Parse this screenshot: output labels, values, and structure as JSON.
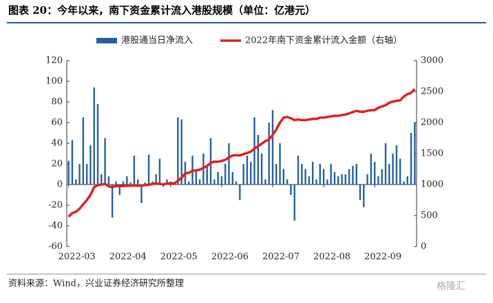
{
  "header": {
    "title": "图表 20：今年以来，南下资金累计流入港股规模（单位：亿港元）"
  },
  "chart_data": {
    "type": "bar-line",
    "categories": [
      "2022-03",
      null,
      null,
      null,
      null,
      null,
      null,
      null,
      null,
      null,
      null,
      null,
      null,
      null,
      "2022-04",
      null,
      null,
      null,
      null,
      null,
      null,
      null,
      null,
      null,
      null,
      null,
      null,
      null,
      "2022-05",
      null,
      null,
      null,
      null,
      null,
      null,
      null,
      null,
      null,
      null,
      null,
      null,
      null,
      "2022-06",
      null,
      null,
      null,
      null,
      null,
      null,
      null,
      null,
      null,
      null,
      null,
      null,
      null,
      "2022-07",
      null,
      null,
      null,
      null,
      null,
      null,
      null,
      null,
      null,
      null,
      null,
      null,
      null,
      "2022-08",
      null,
      null,
      null,
      null,
      null,
      null,
      null,
      null,
      null,
      null,
      null,
      null,
      null,
      "2022-09",
      null,
      null,
      null,
      null,
      null,
      null,
      null,
      null,
      null,
      null,
      null
    ],
    "series": [
      {
        "name": "港股通当日净流入",
        "kind": "bar",
        "axis": "y",
        "color": "#24609f",
        "values": [
          23,
          43,
          5,
          20,
          65,
          20,
          38,
          94,
          78,
          10,
          45,
          8,
          -32,
          3,
          -10,
          3,
          8,
          2,
          28,
          5,
          -18,
          2,
          29,
          3,
          10,
          25,
          -2,
          5,
          3,
          2,
          65,
          63,
          22,
          3,
          28,
          15,
          5,
          30,
          18,
          45,
          5,
          12,
          8,
          20,
          40,
          12,
          3,
          -15,
          20,
          28,
          22,
          65,
          48,
          30,
          5,
          60,
          72,
          20,
          40,
          15,
          5,
          -10,
          -35,
          28,
          20,
          15,
          8,
          22,
          5,
          20,
          15,
          5,
          20,
          12,
          8,
          10,
          10,
          15,
          18,
          20,
          -15,
          -22,
          10,
          30,
          22,
          8,
          15,
          40,
          20,
          30,
          38,
          25,
          3,
          8,
          50,
          60
        ]
      },
      {
        "name": "2022年南下资金累计流入金额（右轴）",
        "kind": "line",
        "axis": "y2",
        "color": "#e02020",
        "values": [
          480,
          540,
          560,
          610,
          680,
          750,
          830,
          960,
          990,
          1000,
          1010,
          970,
          960,
          975,
          975,
          975,
          980,
          980,
          985,
          980,
          985,
          990,
          995,
          1010,
          1020,
          1010,
          1005,
          1015,
          1020,
          1020,
          1060,
          1110,
          1180,
          1190,
          1220,
          1230,
          1240,
          1270,
          1300,
          1350,
          1370,
          1370,
          1380,
          1400,
          1440,
          1470,
          1475,
          1470,
          1490,
          1510,
          1530,
          1580,
          1620,
          1660,
          1700,
          1730,
          1800,
          1890,
          2000,
          2080,
          2090,
          2070,
          2040,
          2050,
          2040,
          2040,
          2050,
          2060,
          2060,
          2080,
          2080,
          2090,
          2100,
          2110,
          2110,
          2120,
          2130,
          2150,
          2170,
          2190,
          2175,
          2175,
          2190,
          2200,
          2200,
          2240,
          2260,
          2280,
          2320,
          2340,
          2350,
          2360,
          2420,
          2460,
          2480,
          2540
        ]
      }
    ],
    "ylim": [
      -60,
      120
    ],
    "yticks": [
      -60,
      -40,
      -20,
      0,
      20,
      40,
      60,
      80,
      100,
      120
    ],
    "y2lim": [
      0,
      3000
    ],
    "y2ticks": [
      0,
      500,
      1000,
      1500,
      2000,
      2500,
      3000
    ],
    "legend": "top"
  },
  "footer": {
    "source": "资料来源：Wind，兴业证券经济研究所整理",
    "watermark": "格隆汇"
  }
}
